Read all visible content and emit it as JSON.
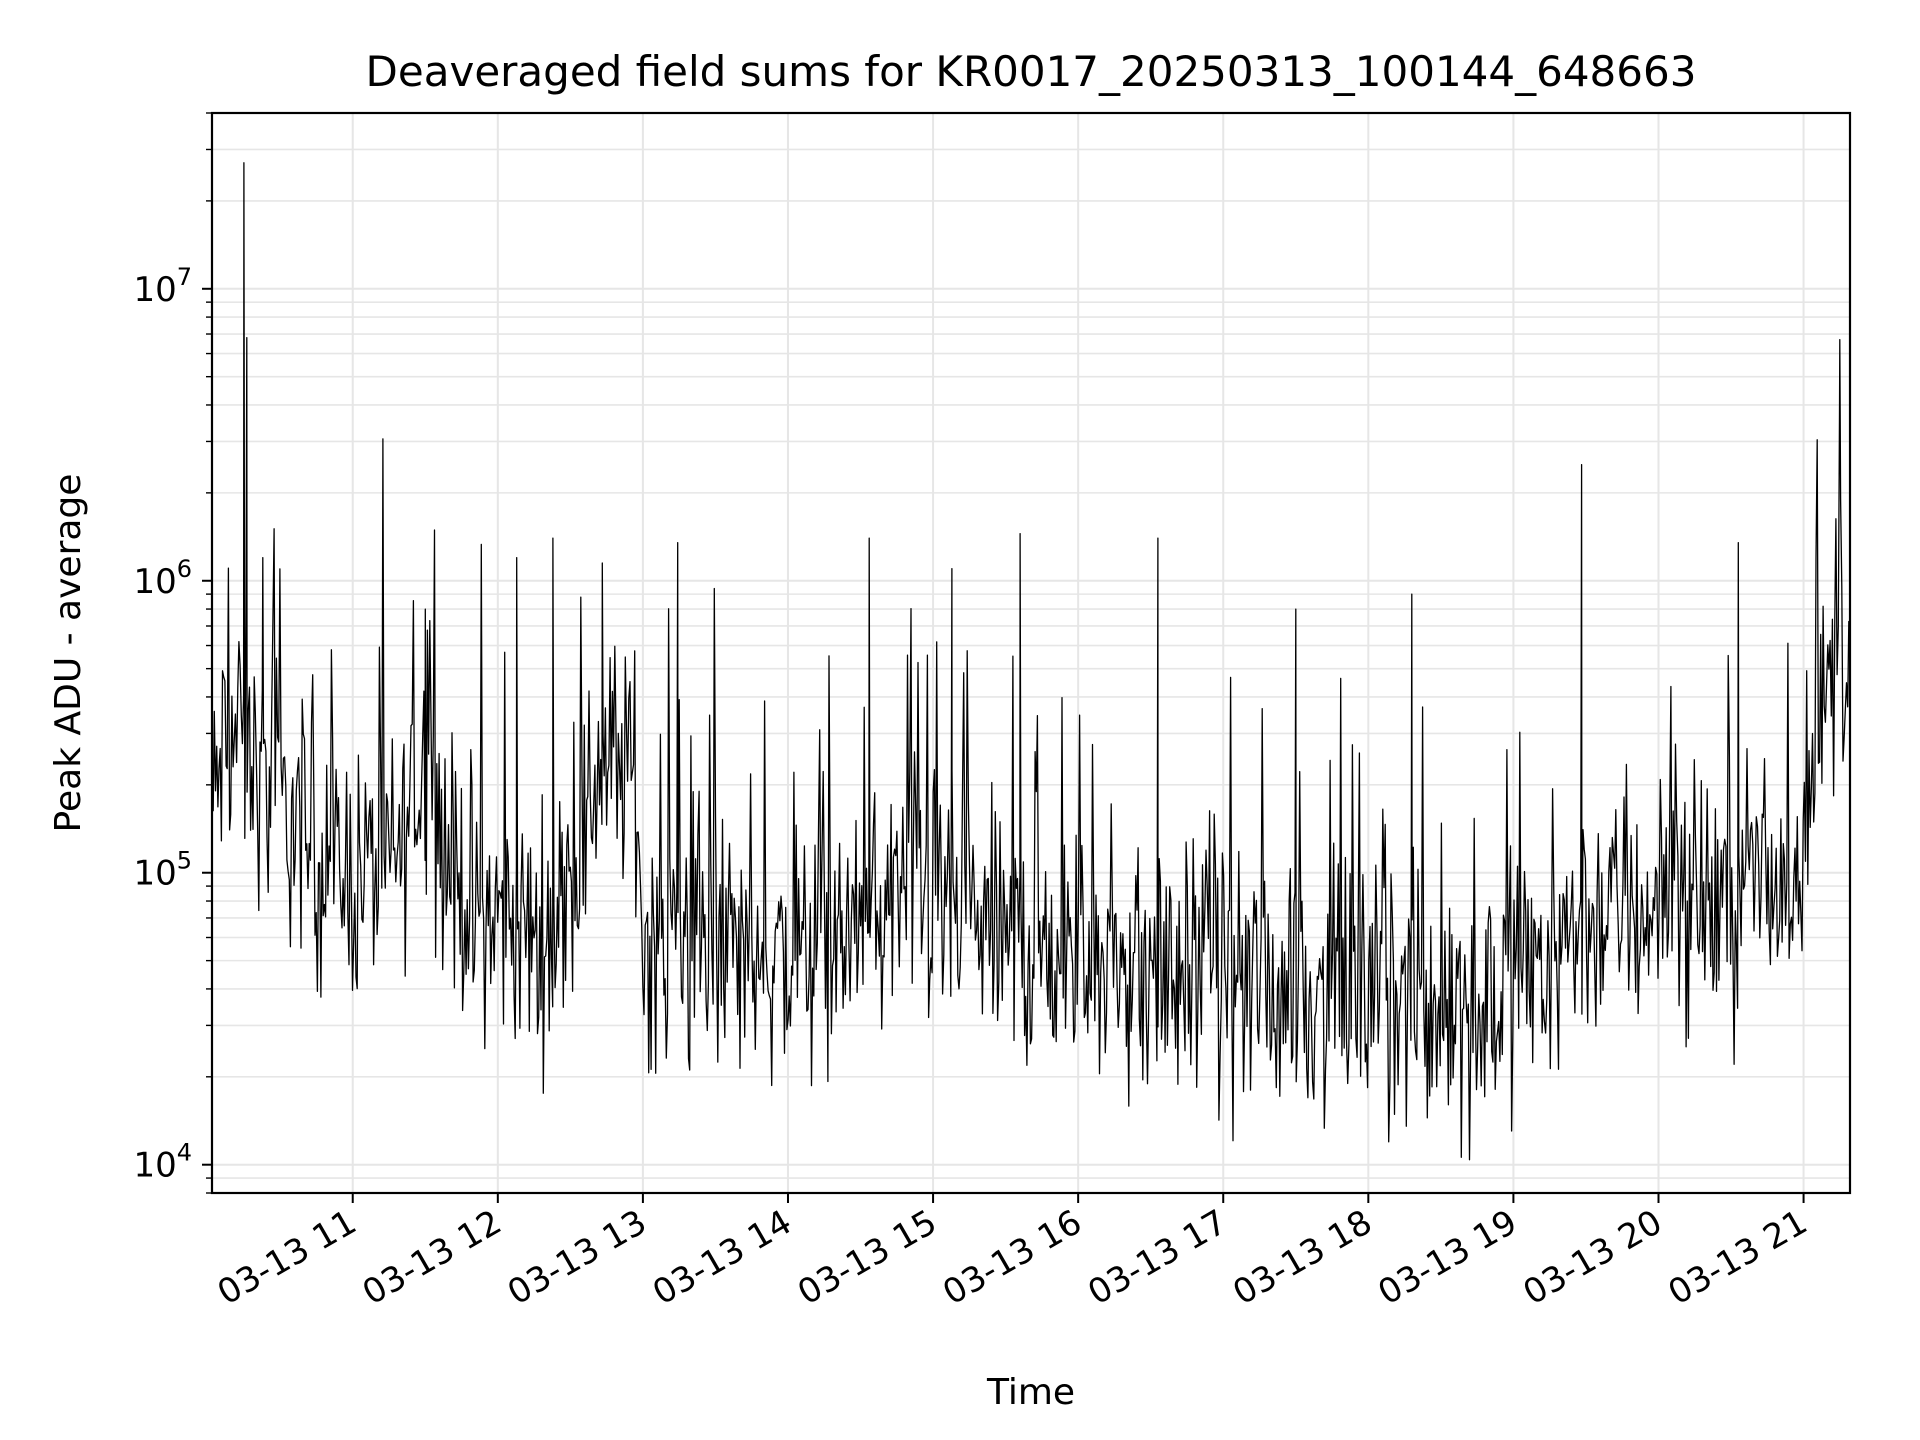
{
  "chart_data": {
    "type": "line",
    "title": "Deaveraged field sums for KR0017_20250313_100144_648663",
    "xlabel": "Time",
    "ylabel": "Peak ADU - average",
    "yscale": "log",
    "ylim": [
      8000,
      40000000
    ],
    "xlim_hours": [
      10.03,
      21.32
    ],
    "grid": true,
    "line_color": "#000000",
    "grid_color": "#e6e6e6",
    "x_ticks": [
      {
        "hour": 11,
        "label": "03-13 11"
      },
      {
        "hour": 12,
        "label": "03-13 12"
      },
      {
        "hour": 13,
        "label": "03-13 13"
      },
      {
        "hour": 14,
        "label": "03-13 14"
      },
      {
        "hour": 15,
        "label": "03-13 15"
      },
      {
        "hour": 16,
        "label": "03-13 16"
      },
      {
        "hour": 17,
        "label": "03-13 17"
      },
      {
        "hour": 18,
        "label": "03-13 18"
      },
      {
        "hour": 19,
        "label": "03-13 19"
      },
      {
        "hour": 20,
        "label": "03-13 20"
      },
      {
        "hour": 21,
        "label": "03-13 21"
      }
    ],
    "y_ticks": [
      {
        "value": 10000,
        "base": "10",
        "exp": "4"
      },
      {
        "value": 100000,
        "base": "10",
        "exp": "5"
      },
      {
        "value": 1000000,
        "base": "10",
        "exp": "6"
      },
      {
        "value": 10000000,
        "base": "10",
        "exp": "7"
      }
    ],
    "baseline": {
      "hours": [
        10.03,
        10.1,
        10.2,
        10.4,
        10.7,
        11.0,
        11.3,
        11.5,
        11.7,
        12.0,
        12.3,
        12.5,
        12.7,
        12.95,
        13.0,
        13.5,
        14.0,
        14.5,
        14.8,
        15.0,
        15.5,
        16.0,
        16.5,
        17.0,
        17.5,
        18.0,
        18.5,
        18.8,
        19.0,
        19.5,
        20.0,
        20.5,
        20.9,
        21.0,
        21.2,
        21.32
      ],
      "values": [
        150000,
        250000,
        300000,
        200000,
        120000,
        100000,
        110000,
        250000,
        90000,
        70000,
        60000,
        80000,
        250000,
        220000,
        60000,
        55000,
        50000,
        60000,
        90000,
        80000,
        60000,
        50000,
        45000,
        45000,
        40000,
        38000,
        36000,
        35000,
        45000,
        70000,
        75000,
        80000,
        95000,
        150000,
        500000,
        600000
      ]
    },
    "spikes": [
      {
        "hour": 10.25,
        "value": 27000000
      },
      {
        "hour": 10.27,
        "value": 6800000
      },
      {
        "hour": 10.38,
        "value": 1200000
      },
      {
        "hour": 11.5,
        "value": 800000
      },
      {
        "hour": 12.13,
        "value": 1200000
      },
      {
        "hour": 12.38,
        "value": 1400000
      },
      {
        "hour": 12.72,
        "value": 1150000
      },
      {
        "hour": 13.24,
        "value": 1350000
      },
      {
        "hour": 14.56,
        "value": 1400000
      },
      {
        "hour": 15.13,
        "value": 1100000
      },
      {
        "hour": 15.6,
        "value": 1450000
      },
      {
        "hour": 16.55,
        "value": 1400000
      },
      {
        "hour": 17.5,
        "value": 800000
      },
      {
        "hour": 18.3,
        "value": 900000
      },
      {
        "hour": 19.47,
        "value": 2500000
      },
      {
        "hour": 20.55,
        "value": 1350000
      },
      {
        "hour": 21.25,
        "value": 6700000
      }
    ],
    "sample_count": 1400
  }
}
